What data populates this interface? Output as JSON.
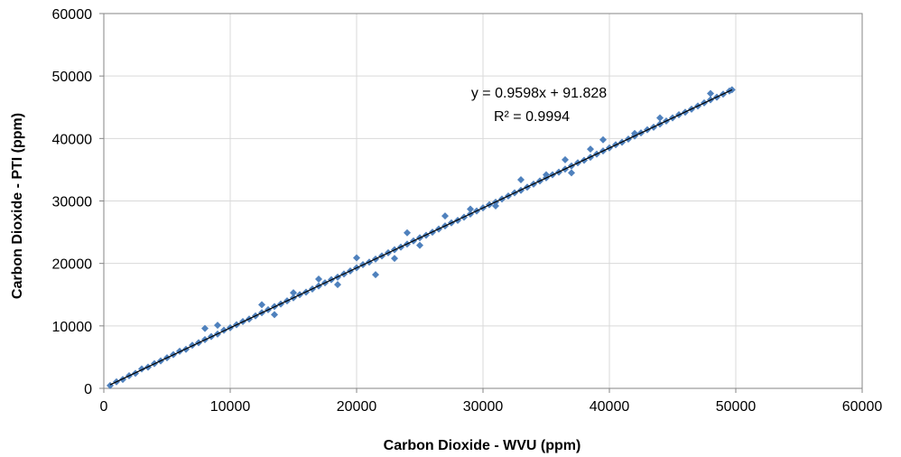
{
  "chart_data": {
    "type": "scatter",
    "title": "",
    "xlabel": "Carbon Dioxide  - WVU (ppm)",
    "ylabel": "Carbon Dioxide  - PTI (ppm)",
    "xlim": [
      0,
      60000
    ],
    "ylim": [
      0,
      60000
    ],
    "x_ticks": [
      0,
      10000,
      20000,
      30000,
      40000,
      50000,
      60000
    ],
    "y_ticks": [
      0,
      10000,
      20000,
      30000,
      40000,
      50000,
      60000
    ],
    "x_tick_labels": [
      "0",
      "10000",
      "20000",
      "30000",
      "40000",
      "50000",
      "60000"
    ],
    "y_tick_labels": [
      "0",
      "10000",
      "20000",
      "30000",
      "40000",
      "50000",
      "60000"
    ],
    "grid": true,
    "legend": "none",
    "marker": "diamond",
    "colors": {
      "points": "#4F81BD",
      "trendline": "#000000",
      "gridlines": "#D9D9D9",
      "plot_border": "#868686"
    },
    "series": [
      {
        "points": [
          [
            500,
            450
          ],
          [
            1000,
            1050
          ],
          [
            1500,
            1420
          ],
          [
            2000,
            2030
          ],
          [
            2500,
            2400
          ],
          [
            3000,
            3100
          ],
          [
            3500,
            3400
          ],
          [
            4000,
            3950
          ],
          [
            4500,
            4400
          ],
          [
            5000,
            4900
          ],
          [
            5500,
            5400
          ],
          [
            6000,
            5950
          ],
          [
            6500,
            6250
          ],
          [
            7000,
            6900
          ],
          [
            7500,
            7300
          ],
          [
            8000,
            7800
          ],
          [
            8500,
            8300
          ],
          [
            9000,
            8700
          ],
          [
            9500,
            9300
          ],
          [
            10000,
            9700
          ],
          [
            10500,
            10200
          ],
          [
            11000,
            10700
          ],
          [
            11500,
            11100
          ],
          [
            12000,
            11600
          ],
          [
            12500,
            12100
          ],
          [
            13000,
            12600
          ],
          [
            13500,
            13100
          ],
          [
            14000,
            13500
          ],
          [
            14500,
            14000
          ],
          [
            15000,
            14500
          ],
          [
            15500,
            15000
          ],
          [
            16000,
            15400
          ],
          [
            16500,
            15900
          ],
          [
            17000,
            16400
          ],
          [
            17500,
            16900
          ],
          [
            18000,
            17400
          ],
          [
            18500,
            17800
          ],
          [
            19000,
            18300
          ],
          [
            19500,
            18800
          ],
          [
            20000,
            19300
          ],
          [
            20500,
            19800
          ],
          [
            21000,
            20200
          ],
          [
            21500,
            20700
          ],
          [
            22000,
            21200
          ],
          [
            22500,
            21700
          ],
          [
            23000,
            22200
          ],
          [
            23500,
            22600
          ],
          [
            24000,
            23100
          ],
          [
            24500,
            23600
          ],
          [
            25000,
            24100
          ],
          [
            25500,
            24500
          ],
          [
            26000,
            25000
          ],
          [
            26500,
            25500
          ],
          [
            27000,
            26000
          ],
          [
            27500,
            26500
          ],
          [
            28000,
            26900
          ],
          [
            28500,
            27400
          ],
          [
            29000,
            27900
          ],
          [
            29500,
            28400
          ],
          [
            30000,
            28900
          ],
          [
            30500,
            29400
          ],
          [
            31000,
            29800
          ],
          [
            31500,
            30300
          ],
          [
            32000,
            30800
          ],
          [
            32500,
            31300
          ],
          [
            33000,
            31700
          ],
          [
            33500,
            32200
          ],
          [
            34000,
            32700
          ],
          [
            34500,
            33200
          ],
          [
            35000,
            33700
          ],
          [
            35500,
            34200
          ],
          [
            36000,
            34600
          ],
          [
            36500,
            35100
          ],
          [
            37000,
            35600
          ],
          [
            37500,
            36100
          ],
          [
            38000,
            36500
          ],
          [
            38500,
            37000
          ],
          [
            39000,
            37500
          ],
          [
            39500,
            38000
          ],
          [
            40000,
            38500
          ],
          [
            40500,
            39000
          ],
          [
            41000,
            39400
          ],
          [
            41500,
            39900
          ],
          [
            42000,
            40400
          ],
          [
            42500,
            40900
          ],
          [
            43000,
            41400
          ],
          [
            43500,
            41800
          ],
          [
            44000,
            42300
          ],
          [
            44500,
            42800
          ],
          [
            45000,
            43300
          ],
          [
            45500,
            43800
          ],
          [
            46000,
            44200
          ],
          [
            46500,
            44700
          ],
          [
            47000,
            45200
          ],
          [
            47500,
            45700
          ],
          [
            48000,
            46200
          ],
          [
            48500,
            46600
          ],
          [
            49000,
            47100
          ],
          [
            49500,
            47600
          ],
          [
            49700,
            47800
          ],
          [
            8000,
            9600
          ],
          [
            9000,
            10100
          ],
          [
            12500,
            13400
          ],
          [
            13500,
            11800
          ],
          [
            18500,
            16600
          ],
          [
            21500,
            18200
          ],
          [
            24000,
            24900
          ],
          [
            25000,
            22900
          ],
          [
            29000,
            28700
          ],
          [
            31000,
            29200
          ],
          [
            35000,
            34200
          ],
          [
            37000,
            34500
          ],
          [
            38500,
            38300
          ],
          [
            42000,
            40800
          ],
          [
            44000,
            43300
          ],
          [
            48000,
            47200
          ],
          [
            15000,
            15300
          ],
          [
            17000,
            17500
          ],
          [
            20000,
            20900
          ],
          [
            23000,
            20800
          ],
          [
            27000,
            27600
          ],
          [
            33000,
            33400
          ],
          [
            36500,
            36600
          ],
          [
            39500,
            39800
          ]
        ]
      }
    ],
    "trendline": {
      "slope": 0.9598,
      "intercept": 91.828,
      "x_range": [
        500,
        49700
      ],
      "equation_text": "y = 0.9598x + 91.828",
      "r_squared_text": "R² = 0.9994"
    }
  }
}
